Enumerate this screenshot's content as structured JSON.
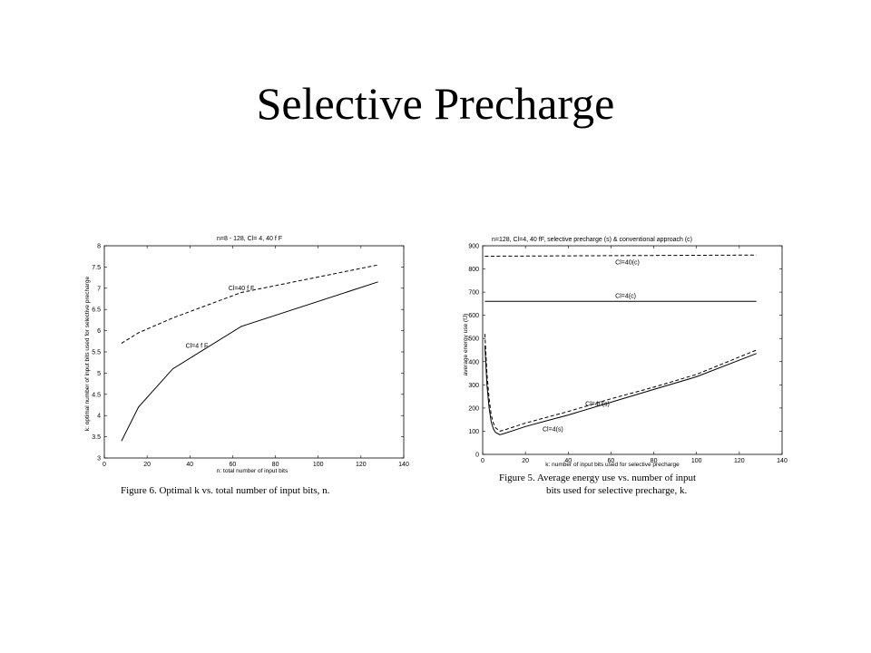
{
  "slide": {
    "title": "Selective Precharge"
  },
  "chart_data": [
    {
      "id": "fig6",
      "type": "line",
      "title": "n=8 - 128,  Cl= 4, 40 f F",
      "xlabel": "n: total number of input bits",
      "ylabel": "k: optimal number of input bits used for selective precharge",
      "xlim": [
        0,
        140
      ],
      "ylim": [
        3,
        8
      ],
      "xticks": [
        0,
        20,
        40,
        60,
        80,
        100,
        120,
        140
      ],
      "yticks": [
        3,
        3.5,
        4,
        4.5,
        5,
        5.5,
        6,
        6.5,
        7,
        7.5,
        8
      ],
      "series": [
        {
          "name": "Cl=40 f F",
          "style": "dashed",
          "x": [
            8,
            16,
            32,
            64,
            128
          ],
          "y": [
            5.7,
            5.95,
            6.3,
            6.9,
            7.55
          ]
        },
        {
          "name": "Cl=4 f F",
          "style": "solid",
          "x": [
            8,
            16,
            32,
            64,
            128
          ],
          "y": [
            3.4,
            4.2,
            5.1,
            6.1,
            7.15
          ]
        }
      ],
      "annotations": [
        {
          "text": "Cl=40 f F",
          "x": 58,
          "y": 6.95
        },
        {
          "text": "Cl=4 f F",
          "x": 38,
          "y": 5.6
        }
      ],
      "caption": "Figure 6.  Optimal k vs. total number of input bits, n."
    },
    {
      "id": "fig5",
      "type": "line",
      "title": "n=128, Cl=4, 40 fF,   selective precharge (s) & conventional approach (c)",
      "xlabel": "k: number of input bits used for selective precharge",
      "ylabel": "average energy use (fJ)",
      "xlim": [
        0,
        140
      ],
      "ylim": [
        0,
        900
      ],
      "xticks": [
        0,
        20,
        40,
        60,
        80,
        100,
        120,
        140
      ],
      "yticks": [
        0,
        100,
        200,
        300,
        400,
        500,
        600,
        700,
        800,
        900
      ],
      "series": [
        {
          "name": "Cl=40(c)",
          "style": "dashed",
          "x": [
            1,
            128
          ],
          "y": [
            855,
            860
          ]
        },
        {
          "name": "Cl=4(c)",
          "style": "solid",
          "x": [
            1,
            128
          ],
          "y": [
            660,
            660
          ]
        },
        {
          "name": "Cl=40(s)",
          "style": "dashed",
          "x": [
            1,
            2,
            3,
            4,
            5,
            6,
            8,
            10,
            15,
            20,
            30,
            40,
            60,
            80,
            100,
            128
          ],
          "y": [
            520,
            350,
            240,
            170,
            135,
            115,
            100,
            105,
            120,
            135,
            160,
            185,
            240,
            290,
            345,
            450
          ]
        },
        {
          "name": "Cl=4(s)",
          "style": "solid",
          "x": [
            1,
            2,
            3,
            4,
            5,
            6,
            8,
            10,
            15,
            20,
            30,
            40,
            60,
            80,
            100,
            128
          ],
          "y": [
            470,
            300,
            200,
            140,
            110,
            95,
            85,
            90,
            105,
            120,
            145,
            170,
            225,
            280,
            335,
            435
          ]
        }
      ],
      "annotations": [
        {
          "text": "Cl=40(c)",
          "x": 62,
          "y": 820
        },
        {
          "text": "Cl=4(c)",
          "x": 62,
          "y": 675
        },
        {
          "text": "Cl=40(s)",
          "x": 48,
          "y": 210
        },
        {
          "text": "Cl=4(s)",
          "x": 28,
          "y": 100
        }
      ],
      "caption_lines": [
        "Figure 5.  Average energy use vs. number of input",
        "bits used for selective precharge, k."
      ]
    }
  ]
}
